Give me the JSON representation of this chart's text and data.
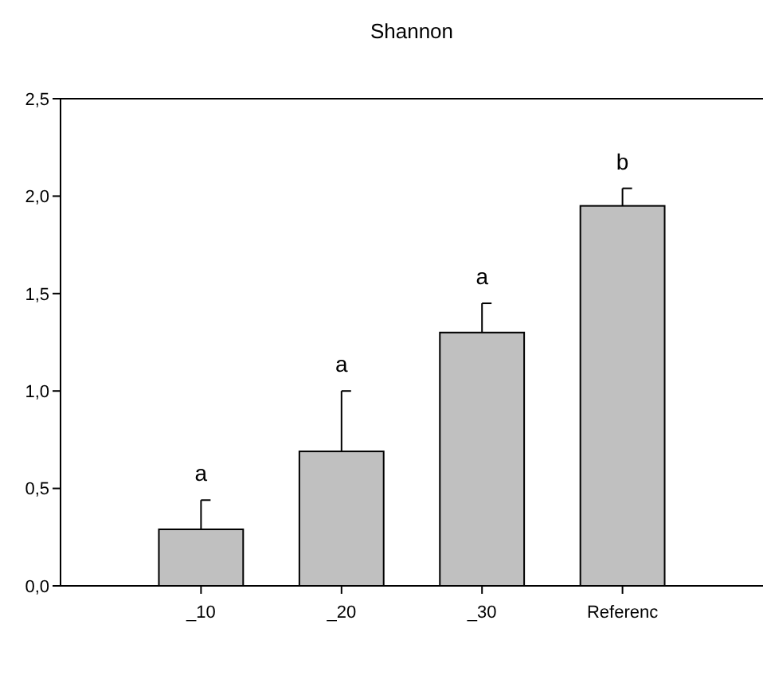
{
  "chart_data": {
    "type": "bar",
    "title": "Shannon",
    "categories": [
      "_10",
      "_20",
      "_30",
      "Referenc"
    ],
    "values": [
      0.29,
      0.69,
      1.3,
      1.95
    ],
    "errors": [
      [
        0.29,
        0.44
      ],
      [
        0.69,
        1.0
      ],
      [
        1.3,
        1.45
      ],
      [
        1.95,
        2.04
      ]
    ],
    "color": "#c0c0c0",
    "ylim": [
      0,
      2.5
    ],
    "yticks": [
      {
        "value": 0,
        "label": "0,0"
      },
      {
        "value": 0.5,
        "label": "0,5"
      },
      {
        "value": 1,
        "label": "1,0"
      },
      {
        "value": 1.5,
        "label": "1,5"
      },
      {
        "value": 2,
        "label": "2,0"
      },
      {
        "value": 2.5,
        "label": "2,5"
      }
    ],
    "annotations": [
      {
        "text": "a",
        "x": "_10",
        "y": 0.44
      },
      {
        "text": "a",
        "x": "_20",
        "y": 1.0
      },
      {
        "text": "a",
        "x": "_30",
        "y": 1.45
      },
      {
        "text": "b",
        "x": "Referenc",
        "y": 2.04
      }
    ],
    "grid": false
  }
}
